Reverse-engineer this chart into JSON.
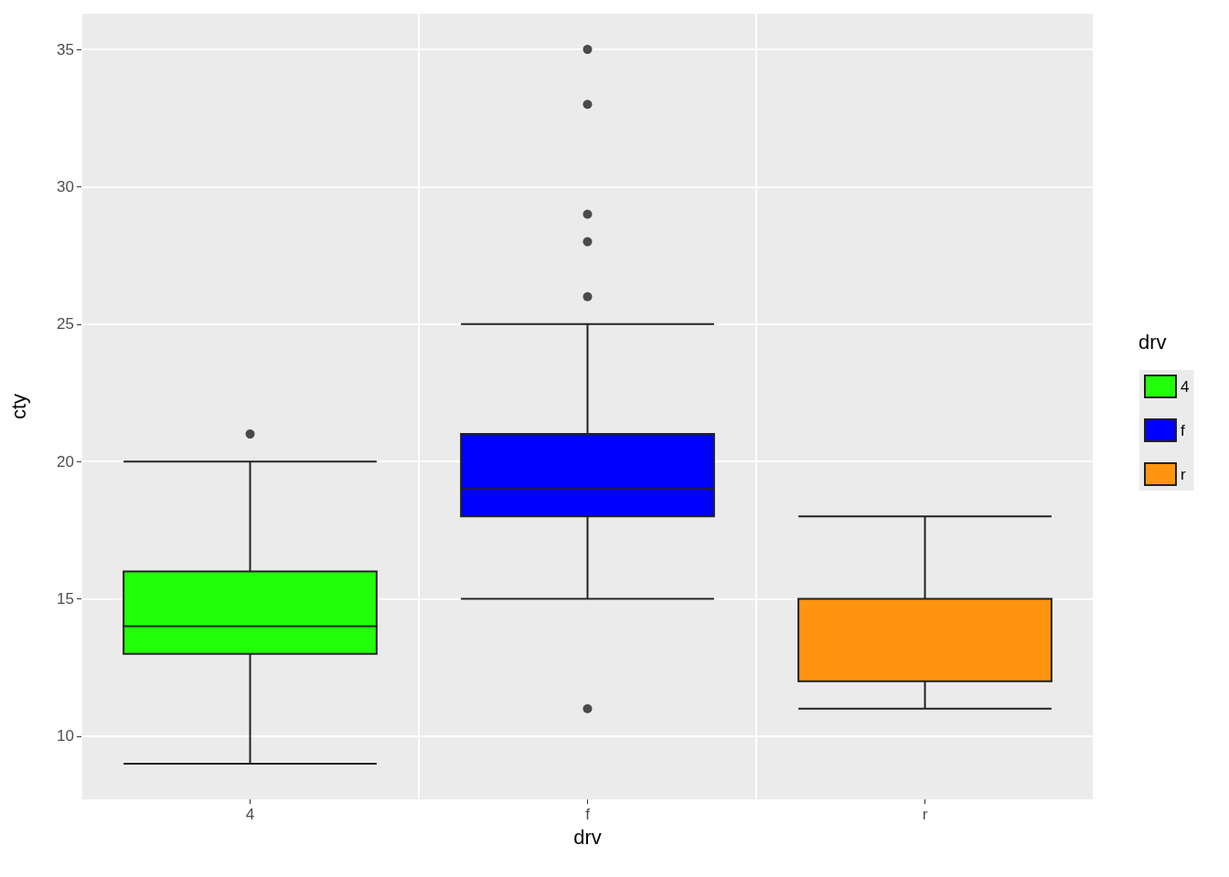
{
  "chart_data": {
    "type": "box",
    "xlabel": "drv",
    "ylabel": "cty",
    "legend_title": "drv",
    "categories": [
      "4",
      "f",
      "r"
    ],
    "series": [
      {
        "name": "4",
        "color": "#22ff0a",
        "boxes": [
          {
            "low": 9,
            "q1": 13,
            "median": 14,
            "q3": 16,
            "high": 20,
            "outliers": [
              21
            ]
          },
          null,
          null
        ]
      },
      {
        "name": "f",
        "color": "#0000ff",
        "boxes": [
          null,
          {
            "low": 15,
            "q1": 18,
            "median": 19,
            "q3": 21,
            "high": 25,
            "outliers": [
              26,
              28,
              29,
              33,
              35,
              11
            ]
          },
          null
        ]
      },
      {
        "name": "r",
        "color": "#ff9410",
        "boxes": [
          null,
          null,
          {
            "low": 11,
            "q1": 12,
            "median": 15,
            "q3": 15,
            "high": 18
          }
        ]
      }
    ],
    "ylim": [
      7.7,
      36.3
    ],
    "yticks": [
      10,
      15,
      20,
      25,
      30,
      35
    ],
    "grid": true,
    "legend": "right",
    "marker": "circle"
  }
}
